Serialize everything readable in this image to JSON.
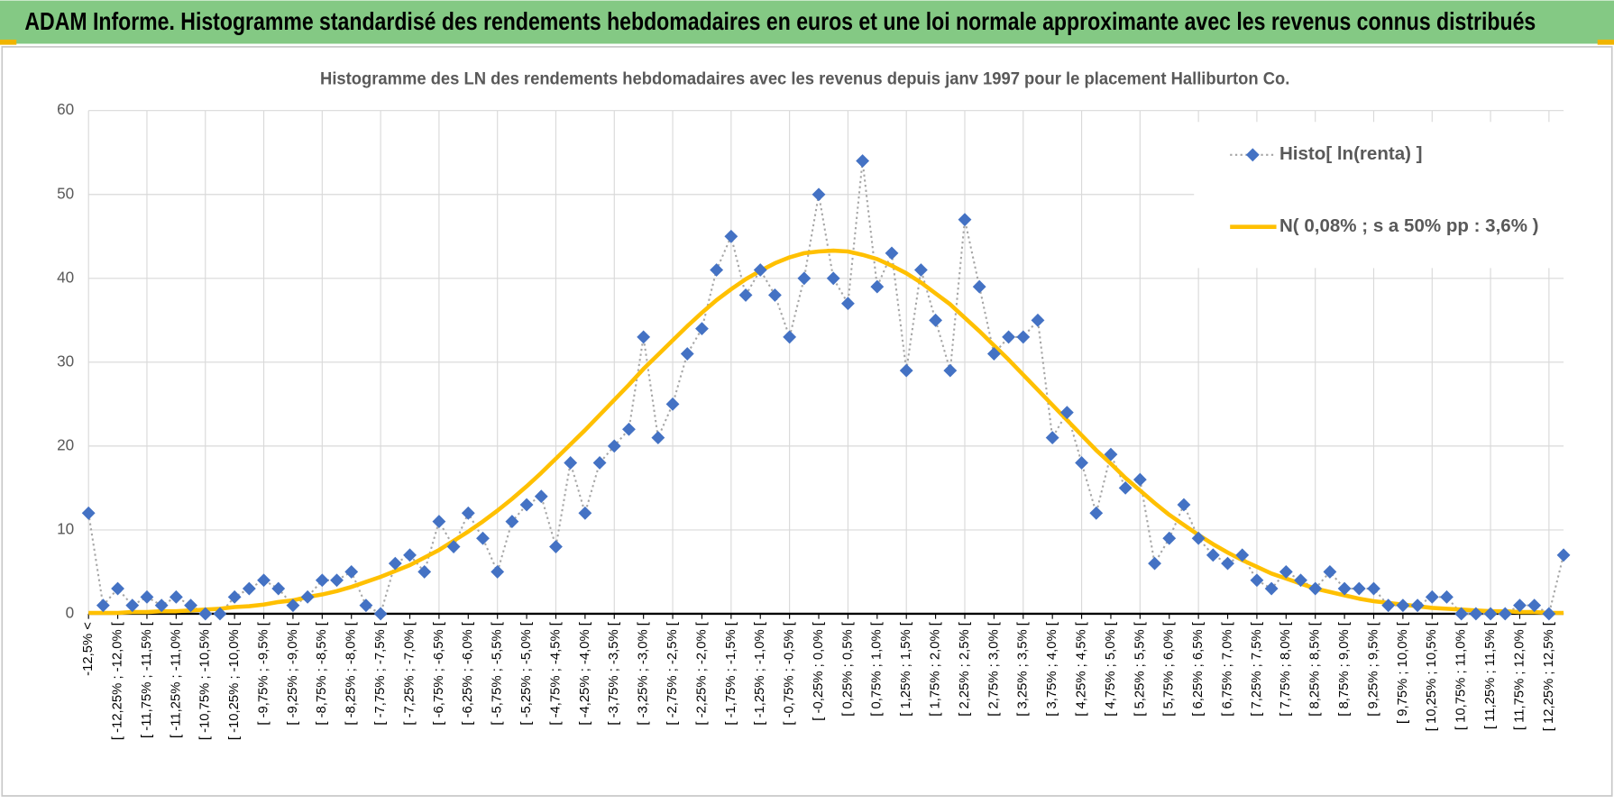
{
  "header": {
    "title": "ADAM Informe. Histogramme standardisé des rendements hebdomadaires en euros et une loi normale approximante avec les revenus connus distribués"
  },
  "chart_data": {
    "type": "line",
    "title": "Histogramme des LN des rendements hebdomadaires avec les revenus depuis janv 1997 pour le placement Halliburton Co.",
    "categories": [
      "-12,5% <",
      null,
      "[ -12,25% ; -12,0% [",
      null,
      "[ -11,75% ; -11,5% [",
      null,
      "[ -11,25% ; -11,0% [",
      null,
      "[ -10,75% ; -10,5% [",
      null,
      "[ -10,25% ; -10,0% [",
      null,
      "[ -9,75% ; -9,5% [",
      null,
      "[ -9,25% ; -9,0% [",
      null,
      "[ -8,75% ; -8,5% [",
      null,
      "[ -8,25% ; -8,0% [",
      null,
      "[ -7,75% ; -7,5% [",
      null,
      "[ -7,25% ; -7,0% [",
      null,
      "[ -6,75% ; -6,5% [",
      null,
      "[ -6,25% ; -6,0% [",
      null,
      "[ -5,75% ; -5,5% [",
      null,
      "[ -5,25% ; -5,0% [",
      null,
      "[ -4,75% ; -4,5% [",
      null,
      "[ -4,25% ; -4,0% [",
      null,
      "[ -3,75% ; -3,5% [",
      null,
      "[ -3,25% ; -3,0% [",
      null,
      "[ -2,75% ; -2,5% [",
      null,
      "[ -2,25% ; -2,0% [",
      null,
      "[ -1,75% ; -1,5% [",
      null,
      "[ -1,25% ; -1,0% [",
      null,
      "[ -0,75% ; -0,5% [",
      null,
      "[ -0,25% ; 0,0% [",
      null,
      "[ 0,25% ; 0,5% [",
      null,
      "[ 0,75% ; 1,0% [",
      null,
      "[ 1,25% ; 1,5% [",
      null,
      "[ 1,75% ; 2,0% [",
      null,
      "[ 2,25% ; 2,5% [",
      null,
      "[ 2,75% ; 3,0% [",
      null,
      "[ 3,25% ; 3,5% [",
      null,
      "[ 3,75% ; 4,0% [",
      null,
      "[ 4,25% ; 4,5% [",
      null,
      "[ 4,75% ; 5,0% [",
      null,
      "[ 5,25% ; 5,5% [",
      null,
      "[ 5,75% ; 6,0% [",
      null,
      "[ 6,25% ; 6,5% [",
      null,
      "[ 6,75% ; 7,0% [",
      null,
      "[ 7,25% ; 7,5% [",
      null,
      "[ 7,75% ; 8,0% [",
      null,
      "[ 8,25% ; 8,5% [",
      null,
      "[ 8,75% ; 9,0% [",
      null,
      "[ 9,25% ; 9,5% [",
      null,
      "[ 9,75% ; 10,0% [",
      null,
      "[ 10,25% ; 10,5% [",
      null,
      "[ 10,75% ; 11,0% [",
      null,
      "[ 11,25% ; 11,5% [",
      null,
      "[ 11,75% ; 12,0% [",
      null,
      "[ 12,25% ; 12,5% [",
      null
    ],
    "series": [
      {
        "name": "Histo[ ln(renta) ]",
        "color": "#4472c4",
        "line_color": "#a6a6a6",
        "marker": "diamond",
        "line_style": "dotted",
        "values": [
          12,
          1,
          3,
          1,
          2,
          1,
          2,
          1,
          0,
          0,
          2,
          3,
          4,
          3,
          1,
          2,
          4,
          4,
          5,
          1,
          0,
          6,
          7,
          5,
          11,
          8,
          12,
          9,
          5,
          11,
          13,
          14,
          8,
          18,
          12,
          18,
          20,
          22,
          33,
          21,
          25,
          31,
          34,
          41,
          45,
          38,
          41,
          38,
          33,
          40,
          50,
          40,
          37,
          54,
          39,
          43,
          29,
          41,
          35,
          29,
          47,
          39,
          31,
          33,
          33,
          35,
          21,
          24,
          18,
          12,
          19,
          15,
          16,
          6,
          9,
          13,
          9,
          7,
          6,
          7,
          4,
          3,
          5,
          4,
          3,
          5,
          3,
          3,
          3,
          1,
          1,
          1,
          2,
          2,
          0,
          0,
          0,
          0,
          1,
          1,
          0,
          7
        ]
      },
      {
        "name": "N( 0,08% ; s a 50% pp : 3,6% )",
        "color": "#ffc000",
        "marker": "none",
        "line_style": "solid",
        "values": [
          0.1,
          0.1,
          0.1,
          0.2,
          0.2,
          0.3,
          0.3,
          0.4,
          0.5,
          0.6,
          0.8,
          0.9,
          1.1,
          1.4,
          1.6,
          2.0,
          2.3,
          2.7,
          3.2,
          3.8,
          4.4,
          5.1,
          5.8,
          6.7,
          7.6,
          8.7,
          9.8,
          11.0,
          12.3,
          13.7,
          15.2,
          16.8,
          18.5,
          20.2,
          21.9,
          23.7,
          25.5,
          27.3,
          29.2,
          30.9,
          32.6,
          34.3,
          35.9,
          37.4,
          38.7,
          39.9,
          40.9,
          41.8,
          42.5,
          43.0,
          43.2,
          43.3,
          43.2,
          42.8,
          42.3,
          41.5,
          40.6,
          39.5,
          38.2,
          36.9,
          35.3,
          33.7,
          32.0,
          30.3,
          28.5,
          26.7,
          24.9,
          23.1,
          21.3,
          19.5,
          17.9,
          16.2,
          14.7,
          13.2,
          11.8,
          10.6,
          9.4,
          8.3,
          7.3,
          6.4,
          5.6,
          4.8,
          4.2,
          3.6,
          3.0,
          2.6,
          2.2,
          1.8,
          1.5,
          1.3,
          1.1,
          0.9,
          0.7,
          0.6,
          0.5,
          0.4,
          0.3,
          0.3,
          0.2,
          0.2,
          0.1,
          0.1
        ]
      }
    ],
    "ylim": [
      0,
      60
    ],
    "yticks": [
      0,
      10,
      20,
      30,
      40,
      50,
      60
    ],
    "grid": true,
    "legend": "top-right"
  }
}
